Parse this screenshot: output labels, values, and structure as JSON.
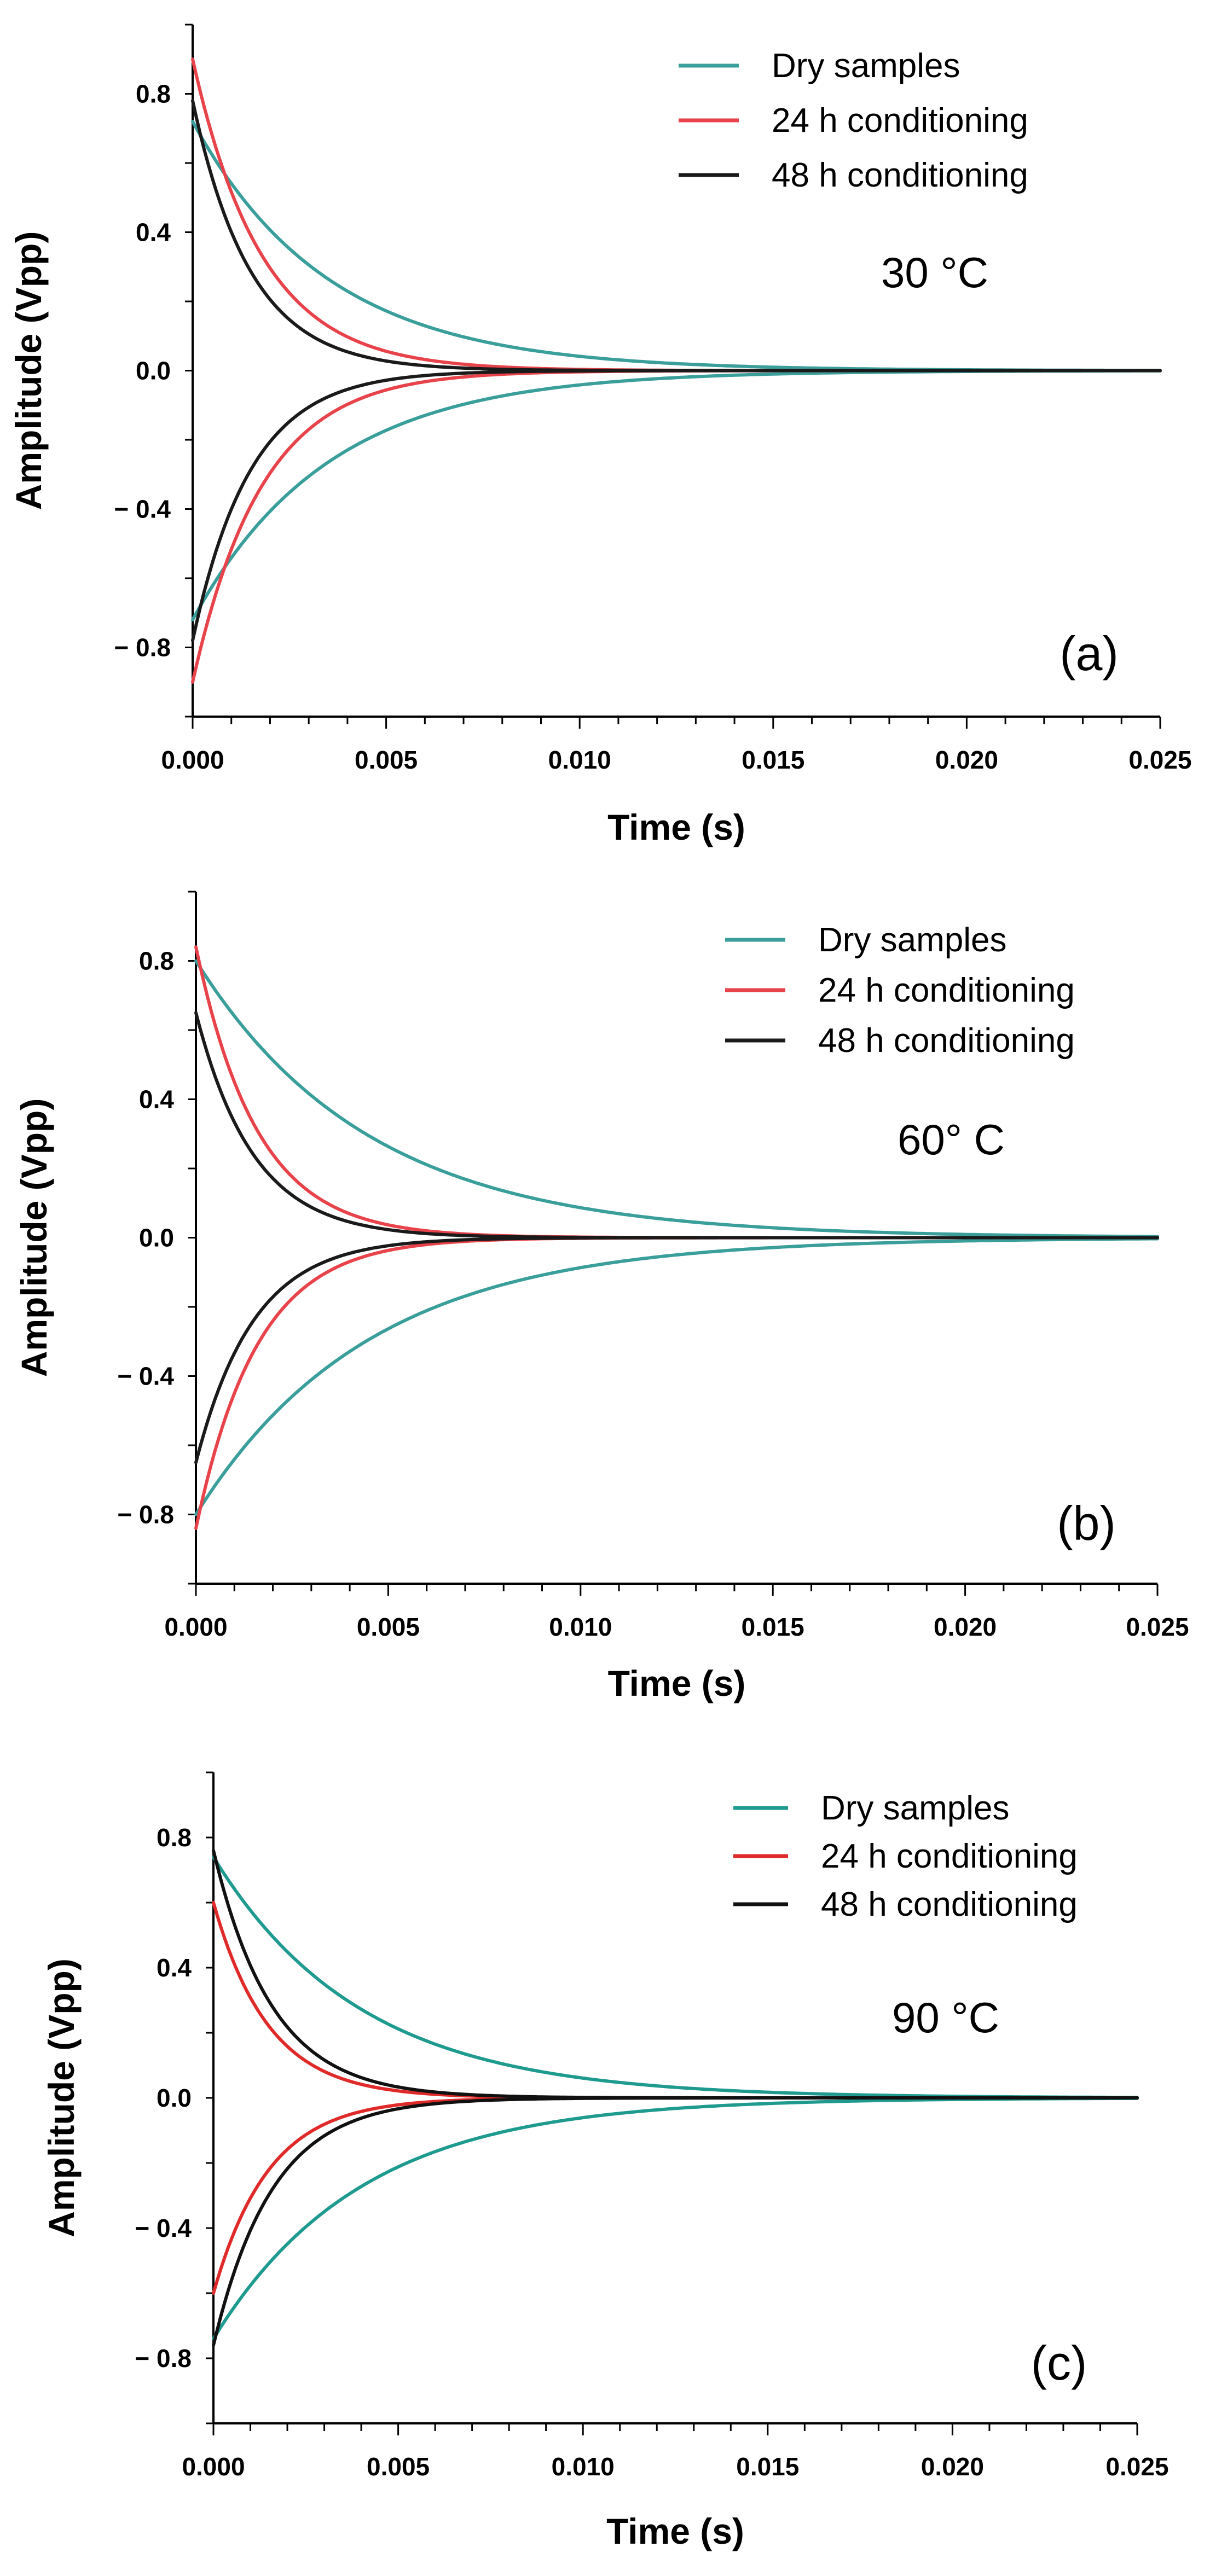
{
  "chart_data": [
    {
      "type": "line",
      "panel_label": "(a)",
      "annotation": "30 °C",
      "xlabel": "Time (s)",
      "ylabel": "Amplitude (Vpp)",
      "xlim": [
        0,
        0.025
      ],
      "ylim": [
        -1.0,
        1.0
      ],
      "x_ticks": [
        0.0,
        0.005,
        0.01,
        0.015,
        0.02,
        0.025
      ],
      "x_tick_labels": [
        "0.000",
        "0.005",
        "0.010",
        "0.015",
        "0.020",
        "0.025"
      ],
      "y_ticks": [
        -0.8,
        -0.4,
        0.0,
        0.4,
        0.8
      ],
      "y_tick_labels": [
        "− 0.8",
        "− 0.4",
        "0.0",
        "0.4",
        "0.8"
      ],
      "legend_position": "top-right",
      "grid": false,
      "series": [
        {
          "name": "Dry samples",
          "color": "#3a9e9a",
          "amplitude": 0.72,
          "tau": 0.0035,
          "envelope": "upper and lower"
        },
        {
          "name": "24 h conditioning",
          "color": "#e8434a",
          "amplitude": 0.9,
          "tau": 0.0018,
          "envelope": "upper and lower"
        },
        {
          "name": "48 h conditioning",
          "color": "#1a1a1a",
          "amplitude": 0.78,
          "tau": 0.0015,
          "envelope": "upper and lower"
        }
      ]
    },
    {
      "type": "line",
      "panel_label": "(b)",
      "annotation": "60° C",
      "xlabel": "Time (s)",
      "ylabel": "Amplitude (Vpp)",
      "xlim": [
        0,
        0.025
      ],
      "ylim": [
        -1.0,
        1.0
      ],
      "x_ticks": [
        0.0,
        0.005,
        0.01,
        0.015,
        0.02,
        0.025
      ],
      "x_tick_labels": [
        "0.000",
        "0.005",
        "0.010",
        "0.015",
        "0.020",
        "0.025"
      ],
      "y_ticks": [
        -0.8,
        -0.4,
        0.0,
        0.4,
        0.8
      ],
      "y_tick_labels": [
        "− 0.8",
        "− 0.4",
        "0.0",
        "0.4",
        "0.8"
      ],
      "legend_position": "top-right",
      "grid": false,
      "series": [
        {
          "name": "Dry samples",
          "color": "#3a9e9a",
          "amplitude": 0.8,
          "tau": 0.0045,
          "envelope": "upper and lower"
        },
        {
          "name": "24 h conditioning",
          "color": "#e8434a",
          "amplitude": 0.84,
          "tau": 0.0016,
          "envelope": "upper and lower"
        },
        {
          "name": "48 h conditioning",
          "color": "#1a1a1a",
          "amplitude": 0.65,
          "tau": 0.0015,
          "envelope": "upper and lower"
        }
      ]
    },
    {
      "type": "line",
      "panel_label": "(c)",
      "annotation": "90 °C",
      "xlabel": "Time (s)",
      "ylabel": "Amplitude (Vpp)",
      "xlim": [
        0,
        0.025
      ],
      "ylim": [
        -1.0,
        1.0
      ],
      "x_ticks": [
        0.0,
        0.005,
        0.01,
        0.015,
        0.02,
        0.025
      ],
      "x_tick_labels": [
        "0.000",
        "0.005",
        "0.010",
        "0.015",
        "0.020",
        "0.025"
      ],
      "y_ticks": [
        -0.8,
        -0.4,
        0.0,
        0.4,
        0.8
      ],
      "y_tick_labels": [
        "− 0.8",
        "− 0.4",
        "0.0",
        "0.4",
        "0.8"
      ],
      "legend_position": "top-right",
      "grid": false,
      "series": [
        {
          "name": "Dry samples",
          "color": "#1f9a8f",
          "amplitude": 0.74,
          "tau": 0.004,
          "envelope": "upper and lower"
        },
        {
          "name": "24 h conditioning",
          "color": "#e02a2a",
          "amplitude": 0.6,
          "tau": 0.0015,
          "envelope": "upper and lower"
        },
        {
          "name": "48 h conditioning",
          "color": "#111111",
          "amplitude": 0.76,
          "tau": 0.0016,
          "envelope": "upper and lower"
        }
      ]
    }
  ]
}
